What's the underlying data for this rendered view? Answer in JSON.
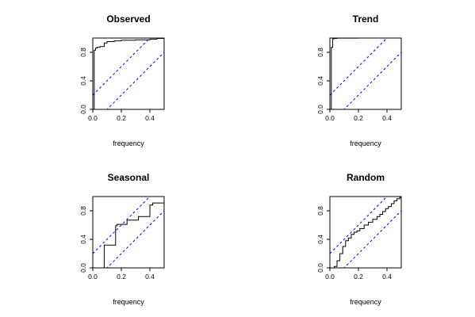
{
  "chart_data": [
    {
      "type": "line",
      "title": "Observed",
      "xlabel": "frequency",
      "ylabel": "",
      "xlim": [
        0,
        0.5
      ],
      "ylim": [
        0,
        1
      ],
      "xticks": [
        "0.0",
        "0.2",
        "0.4"
      ],
      "yticks": [
        "0.0",
        "0.4",
        "0.8"
      ],
      "grid": false,
      "band_color": "#0000ff",
      "band_intercepts": [
        0.2,
        -0.2
      ],
      "cumulative_periodogram": {
        "x": [
          0.0,
          0.005,
          0.01,
          0.02,
          0.03,
          0.05,
          0.08,
          0.1,
          0.15,
          0.2,
          0.3,
          0.4,
          0.45,
          0.5
        ],
        "y": [
          0.0,
          0.0,
          0.83,
          0.86,
          0.87,
          0.88,
          0.93,
          0.95,
          0.96,
          0.97,
          0.975,
          0.985,
          0.995,
          1.0
        ]
      }
    },
    {
      "type": "line",
      "title": "Trend",
      "xlabel": "frequency",
      "ylabel": "",
      "xlim": [
        0,
        0.5
      ],
      "ylim": [
        0,
        1
      ],
      "xticks": [
        "0.0",
        "0.2",
        "0.4"
      ],
      "yticks": [
        "0.0",
        "0.4",
        "0.8"
      ],
      "grid": false,
      "band_color": "#0000ff",
      "band_intercepts": [
        0.2,
        -0.2
      ],
      "cumulative_periodogram": {
        "x": [
          0.0,
          0.005,
          0.01,
          0.02,
          0.03,
          0.05,
          0.1,
          0.2,
          0.3,
          0.4,
          0.5
        ],
        "y": [
          0.0,
          0.0,
          0.87,
          0.99,
          0.995,
          0.998,
          0.999,
          1.0,
          1.0,
          1.0,
          1.0
        ]
      }
    },
    {
      "type": "line",
      "title": "Seasonal",
      "xlabel": "frequency",
      "ylabel": "",
      "xlim": [
        0,
        0.5
      ],
      "ylim": [
        0,
        1
      ],
      "xticks": [
        "0.0",
        "0.2",
        "0.4"
      ],
      "yticks": [
        "0.0",
        "0.4",
        "0.8"
      ],
      "grid": false,
      "band_color": "#0000ff",
      "band_intercepts": [
        0.2,
        -0.2
      ],
      "cumulative_periodogram": {
        "x": [
          0.0,
          0.08,
          0.16,
          0.17,
          0.24,
          0.32,
          0.4,
          0.42,
          0.5
        ],
        "y": [
          0.0,
          0.32,
          0.59,
          0.61,
          0.67,
          0.72,
          0.88,
          0.91,
          0.92
        ]
      }
    },
    {
      "type": "line",
      "title": "Random",
      "xlabel": "frequency",
      "ylabel": "",
      "xlim": [
        0,
        0.5
      ],
      "ylim": [
        0,
        1
      ],
      "xticks": [
        "0.0",
        "0.2",
        "0.4"
      ],
      "yticks": [
        "0.0",
        "0.4",
        "0.8"
      ],
      "grid": false,
      "band_color": "#0000ff",
      "band_intercepts": [
        0.2,
        -0.2
      ],
      "cumulative_periodogram": {
        "x": [
          0.0,
          0.03,
          0.05,
          0.07,
          0.09,
          0.11,
          0.13,
          0.15,
          0.17,
          0.19,
          0.21,
          0.24,
          0.27,
          0.3,
          0.33,
          0.35,
          0.37,
          0.39,
          0.41,
          0.43,
          0.45,
          0.47,
          0.49,
          0.5
        ],
        "y": [
          0.0,
          0.02,
          0.1,
          0.2,
          0.3,
          0.38,
          0.42,
          0.47,
          0.5,
          0.52,
          0.55,
          0.6,
          0.64,
          0.68,
          0.72,
          0.75,
          0.79,
          0.83,
          0.86,
          0.9,
          0.94,
          0.97,
          0.99,
          1.0
        ]
      }
    }
  ]
}
